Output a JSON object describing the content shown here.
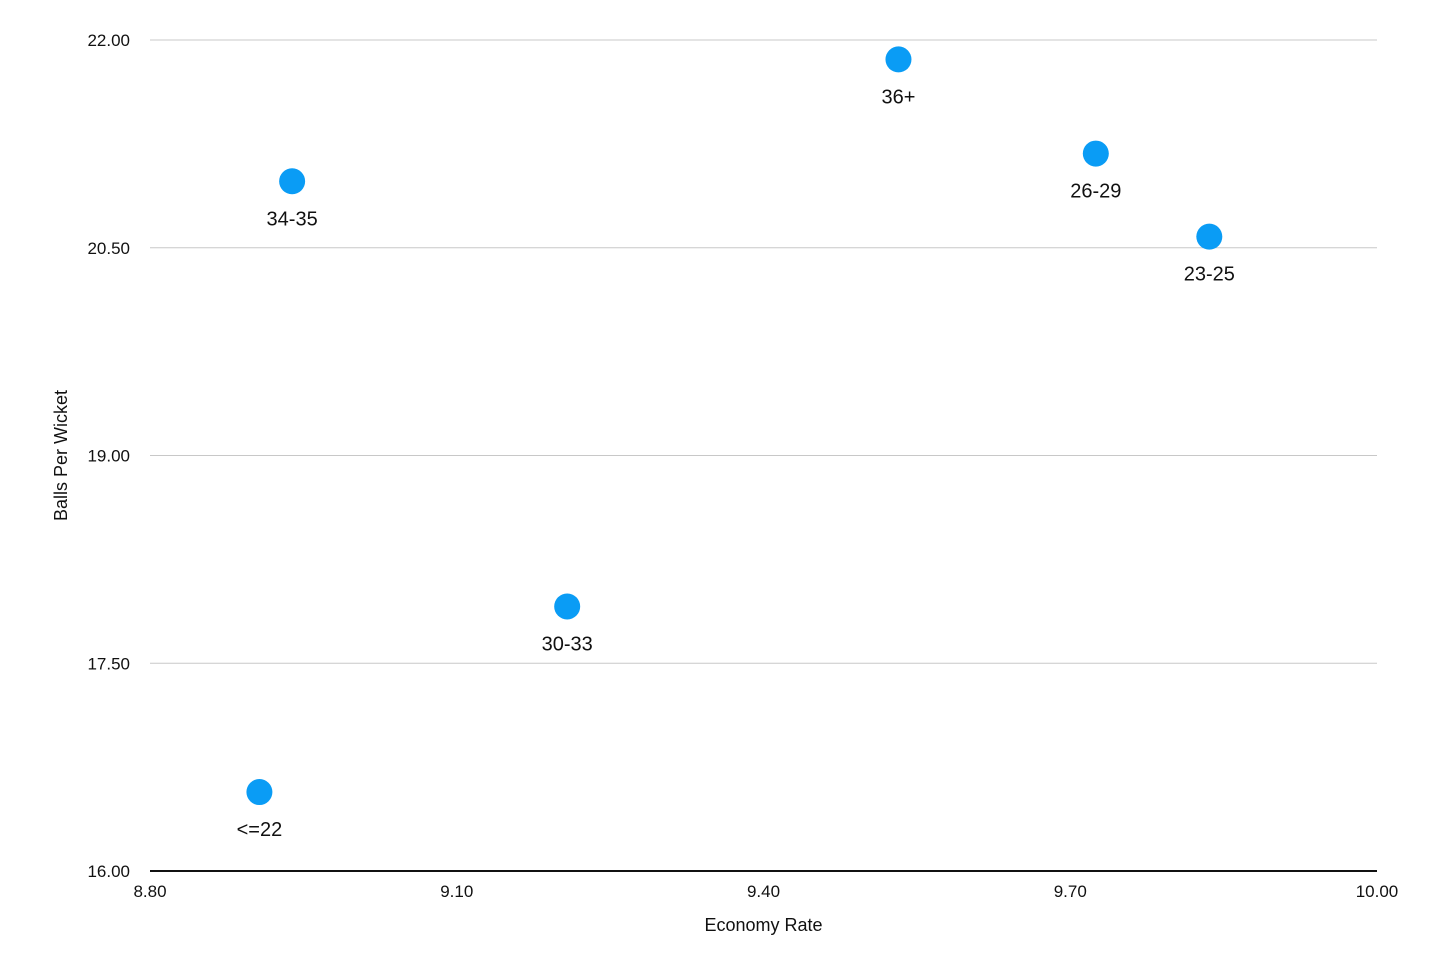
{
  "chart_data": {
    "type": "scatter",
    "title": "",
    "xlabel": "Economy Rate",
    "ylabel": "Balls Per Wicket",
    "xlim": [
      8.8,
      10.0
    ],
    "ylim": [
      16.0,
      22.0
    ],
    "x_ticks": [
      "8.80",
      "9.10",
      "9.40",
      "9.70",
      "10.00"
    ],
    "y_ticks": [
      "16.00",
      "17.50",
      "19.00",
      "20.50",
      "22.00"
    ],
    "grid": true,
    "legend": "none",
    "point_color": "#0a9cf5",
    "points": [
      {
        "label": "<=22",
        "x": 8.907,
        "y": 16.57
      },
      {
        "label": "34-35",
        "x": 8.939,
        "y": 20.98
      },
      {
        "label": "30-33",
        "x": 9.208,
        "y": 17.91
      },
      {
        "label": "36+",
        "x": 9.532,
        "y": 21.86
      },
      {
        "label": "26-29",
        "x": 9.725,
        "y": 21.18
      },
      {
        "label": "23-25",
        "x": 9.836,
        "y": 20.58
      }
    ]
  }
}
